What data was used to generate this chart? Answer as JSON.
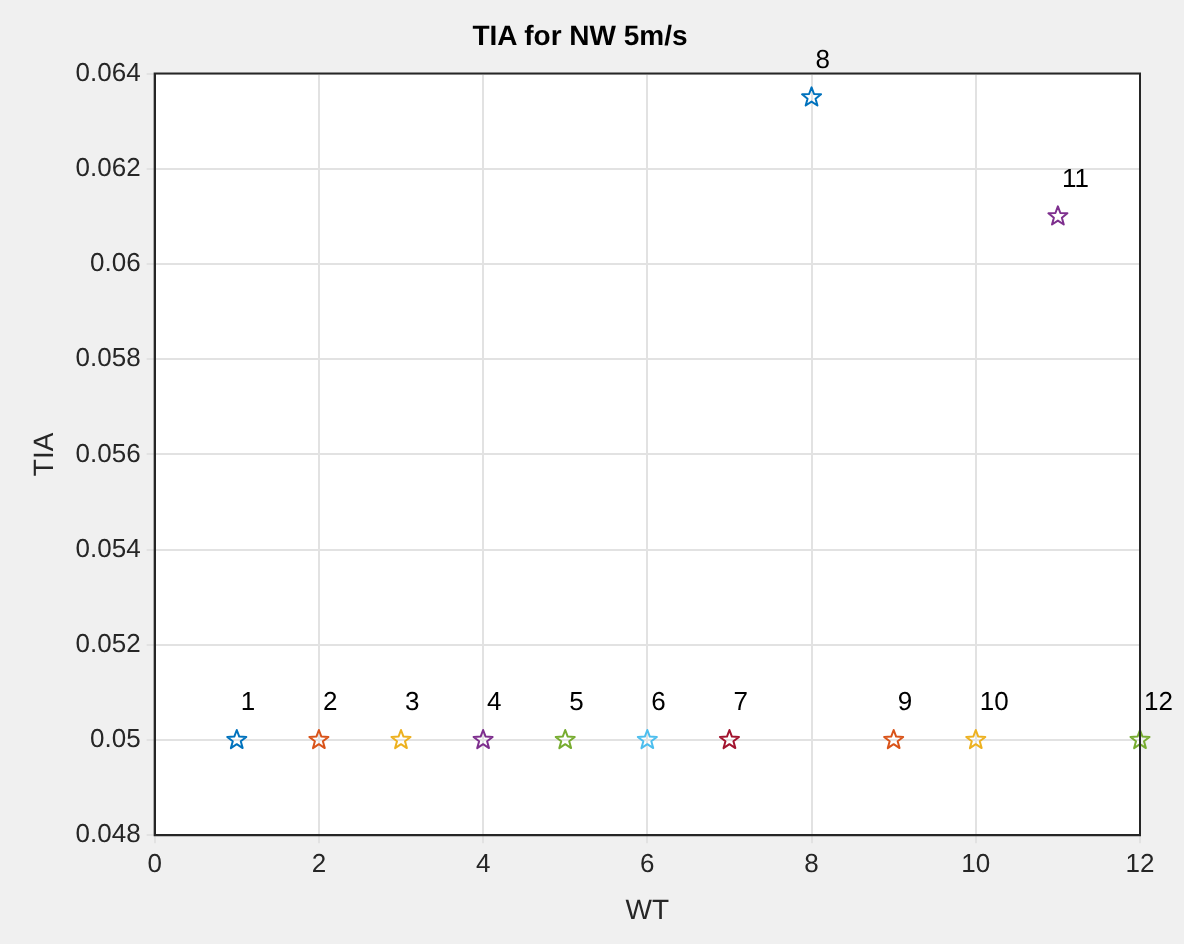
{
  "chart_data": {
    "type": "scatter",
    "title": "TIA for NW 5m/s",
    "xlabel": "WT",
    "ylabel": "TIA",
    "x": [
      1,
      2,
      3,
      4,
      5,
      6,
      7,
      8,
      9,
      10,
      11,
      12
    ],
    "values": [
      0.05,
      0.05,
      0.05,
      0.05,
      0.05,
      0.05,
      0.05,
      0.0635,
      0.05,
      0.05,
      0.061,
      0.05
    ],
    "colors": [
      "#0072bd",
      "#d95319",
      "#edb120",
      "#7e2f8e",
      "#77ac30",
      "#4dbeee",
      "#a2142f",
      "#0072bd",
      "#d95319",
      "#edb120",
      "#7e2f8e",
      "#77ac30"
    ],
    "xlim": [
      0,
      12
    ],
    "xticks": [
      0,
      2,
      4,
      6,
      8,
      10,
      12
    ],
    "ylim": [
      0.048,
      0.064
    ],
    "yticks": [
      0.048,
      0.05,
      0.052,
      0.054,
      0.056,
      0.058,
      0.06,
      0.062,
      0.064
    ],
    "grid": true,
    "marker": "star",
    "legend": false,
    "annotations": [
      {
        "text": "1",
        "x": 1,
        "y": 0.05
      },
      {
        "text": "2",
        "x": 2,
        "y": 0.05
      },
      {
        "text": "3",
        "x": 3,
        "y": 0.05
      },
      {
        "text": "4",
        "x": 4,
        "y": 0.05
      },
      {
        "text": "5",
        "x": 5,
        "y": 0.05
      },
      {
        "text": "6",
        "x": 6,
        "y": 0.05
      },
      {
        "text": "7",
        "x": 7,
        "y": 0.05
      },
      {
        "text": "8",
        "x": 8,
        "y": 0.0635
      },
      {
        "text": "9",
        "x": 9,
        "y": 0.05
      },
      {
        "text": "10",
        "x": 10,
        "y": 0.05
      },
      {
        "text": "11",
        "x": 11,
        "y": 0.061
      },
      {
        "text": "12",
        "x": 12,
        "y": 0.05
      }
    ]
  }
}
